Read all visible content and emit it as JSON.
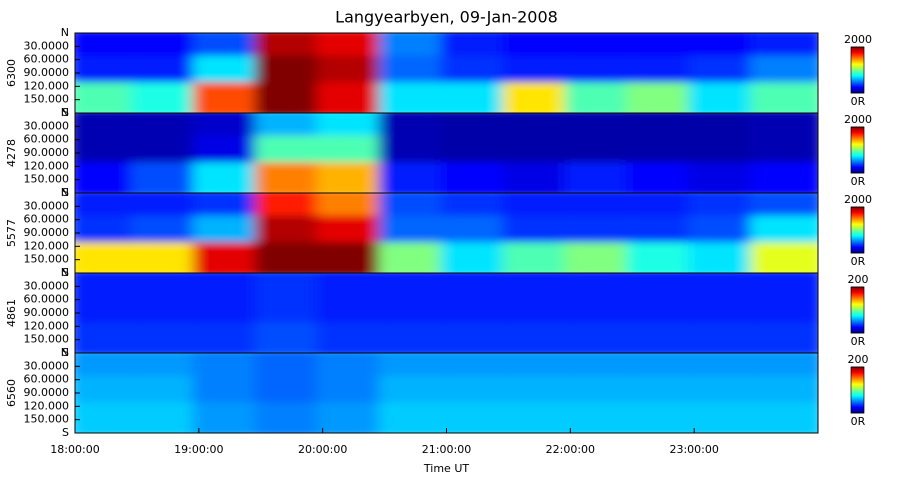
{
  "chart_data": [
    {
      "type": "heatmap",
      "title": "Langyearbyen, 09-Jan-2008",
      "ylabel": "6300",
      "xlim": [
        18,
        24
      ],
      "xbins": [
        18,
        18.5,
        19,
        19.5,
        20,
        20.5,
        21,
        21.5,
        22,
        22.5,
        23,
        23.5,
        24
      ],
      "ylim": [
        0,
        180
      ],
      "ybins": [
        0,
        60,
        120,
        180
      ],
      "yticks": [
        {
          "value": 0,
          "label": "N"
        },
        {
          "value": 30,
          "label": "30.0000"
        },
        {
          "value": 60,
          "label": "60.0000"
        },
        {
          "value": 90,
          "label": "90.0000"
        },
        {
          "value": 120,
          "label": "120.000"
        },
        {
          "value": 150,
          "label": "150.000"
        },
        {
          "value": 180,
          "label": "S"
        }
      ],
      "values": [
        [
          250,
          250,
          400,
          1900,
          1800,
          500,
          300,
          250,
          250,
          250,
          250,
          300
        ],
        [
          300,
          300,
          700,
          2000,
          1900,
          450,
          350,
          300,
          300,
          300,
          350,
          500
        ],
        [
          900,
          800,
          1600,
          2000,
          1800,
          700,
          700,
          1300,
          900,
          1000,
          700,
          900
        ]
      ],
      "colorbar": {
        "range": [
          0,
          2000
        ],
        "ticks": [
          {
            "value": 0,
            "label": "0R"
          },
          2000
        ]
      }
    },
    {
      "type": "heatmap",
      "ylabel": "4278",
      "xlim": [
        18,
        24
      ],
      "xbins": [
        18,
        18.5,
        19,
        19.5,
        20,
        20.5,
        21,
        21.5,
        22,
        22.5,
        23,
        23.5,
        24
      ],
      "ylim": [
        0,
        180
      ],
      "ybins": [
        0,
        60,
        120,
        180
      ],
      "yticks": [
        {
          "value": 0,
          "label": "N"
        },
        {
          "value": 30,
          "label": "30.0000"
        },
        {
          "value": 60,
          "label": "60.0000"
        },
        {
          "value": 90,
          "label": "90.0000"
        },
        {
          "value": 120,
          "label": "120.000"
        },
        {
          "value": 150,
          "label": "150.000"
        },
        {
          "value": 180,
          "label": "S"
        }
      ],
      "values": [
        [
          100,
          100,
          150,
          600,
          700,
          100,
          80,
          80,
          80,
          80,
          80,
          100
        ],
        [
          100,
          100,
          200,
          900,
          900,
          100,
          80,
          80,
          80,
          80,
          80,
          100
        ],
        [
          250,
          400,
          700,
          1500,
          1400,
          300,
          250,
          200,
          300,
          250,
          200,
          250
        ]
      ],
      "colorbar": {
        "range": [
          0,
          2000
        ],
        "ticks": [
          {
            "value": 0,
            "label": "0R"
          },
          2000
        ]
      }
    },
    {
      "type": "heatmap",
      "ylabel": "5577",
      "xlim": [
        18,
        24
      ],
      "xbins": [
        18,
        18.5,
        19,
        19.5,
        20,
        20.5,
        21,
        21.5,
        22,
        22.5,
        23,
        23.5,
        24
      ],
      "ylim": [
        0,
        180
      ],
      "ybins": [
        0,
        60,
        120,
        180
      ],
      "yticks": [
        {
          "value": 0,
          "label": "N"
        },
        {
          "value": 30,
          "label": "30.0000"
        },
        {
          "value": 60,
          "label": "60.0000"
        },
        {
          "value": 90,
          "label": "90.0000"
        },
        {
          "value": 120,
          "label": "120.000"
        },
        {
          "value": 150,
          "label": "150.000"
        },
        {
          "value": 180,
          "label": "S"
        }
      ],
      "values": [
        [
          300,
          300,
          350,
          1700,
          1500,
          400,
          350,
          300,
          300,
          300,
          350,
          400
        ],
        [
          350,
          400,
          600,
          1900,
          1800,
          450,
          450,
          350,
          350,
          350,
          400,
          700
        ],
        [
          1300,
          1300,
          1800,
          2000,
          2000,
          1000,
          700,
          900,
          1000,
          800,
          700,
          1200
        ]
      ],
      "colorbar": {
        "range": [
          0,
          2000
        ],
        "ticks": [
          {
            "value": 0,
            "label": "0R"
          },
          2000
        ]
      }
    },
    {
      "type": "heatmap",
      "ylabel": "4861",
      "xlim": [
        18,
        24
      ],
      "xbins": [
        18,
        18.5,
        19,
        19.5,
        20,
        20.5,
        21,
        21.5,
        22,
        22.5,
        23,
        23.5,
        24
      ],
      "ylim": [
        0,
        180
      ],
      "ybins": [
        0,
        60,
        120,
        180
      ],
      "yticks": [
        {
          "value": 0,
          "label": "N"
        },
        {
          "value": 30,
          "label": "30.0000"
        },
        {
          "value": 60,
          "label": "60.0000"
        },
        {
          "value": 90,
          "label": "90.0000"
        },
        {
          "value": 120,
          "label": "120.000"
        },
        {
          "value": 150,
          "label": "150.000"
        },
        {
          "value": 180,
          "label": "S"
        }
      ],
      "values": [
        [
          30,
          30,
          30,
          35,
          30,
          30,
          30,
          30,
          30,
          30,
          30,
          30
        ],
        [
          30,
          30,
          30,
          35,
          30,
          30,
          30,
          30,
          30,
          30,
          30,
          30
        ],
        [
          35,
          35,
          35,
          40,
          35,
          35,
          35,
          35,
          35,
          35,
          35,
          35
        ]
      ],
      "colorbar": {
        "range": [
          0,
          200
        ],
        "ticks": [
          {
            "value": 0,
            "label": "0R"
          },
          200
        ]
      }
    },
    {
      "type": "heatmap",
      "ylabel": "6560",
      "xlabel": "Time UT",
      "xlim": [
        18,
        24
      ],
      "xbins": [
        18,
        18.5,
        19,
        19.5,
        20,
        20.5,
        21,
        21.5,
        22,
        22.5,
        23,
        23.5,
        24
      ],
      "xticks": [
        {
          "value": 18,
          "label": "18:00:00"
        },
        {
          "value": 19,
          "label": "19:00:00"
        },
        {
          "value": 20,
          "label": "20:00:00"
        },
        {
          "value": 21,
          "label": "21:00:00"
        },
        {
          "value": 22,
          "label": "22:00:00"
        },
        {
          "value": 23,
          "label": "23:00:00"
        }
      ],
      "ylim": [
        0,
        180
      ],
      "ybins": [
        0,
        60,
        120,
        180
      ],
      "yticks": [
        {
          "value": 0,
          "label": "N"
        },
        {
          "value": 30,
          "label": "30.0000"
        },
        {
          "value": 60,
          "label": "60.0000"
        },
        {
          "value": 90,
          "label": "90.0000"
        },
        {
          "value": 120,
          "label": "120.000"
        },
        {
          "value": 150,
          "label": "150.000"
        },
        {
          "value": 180,
          "label": "S"
        }
      ],
      "values": [
        [
          55,
          55,
          50,
          45,
          50,
          55,
          55,
          55,
          55,
          55,
          55,
          55
        ],
        [
          60,
          60,
          50,
          45,
          50,
          60,
          60,
          60,
          60,
          60,
          60,
          60
        ],
        [
          65,
          65,
          55,
          50,
          55,
          65,
          65,
          65,
          65,
          65,
          65,
          65
        ]
      ],
      "colorbar": {
        "range": [
          0,
          200
        ],
        "ticks": [
          {
            "value": 0,
            "label": "0R"
          },
          200
        ]
      }
    }
  ]
}
